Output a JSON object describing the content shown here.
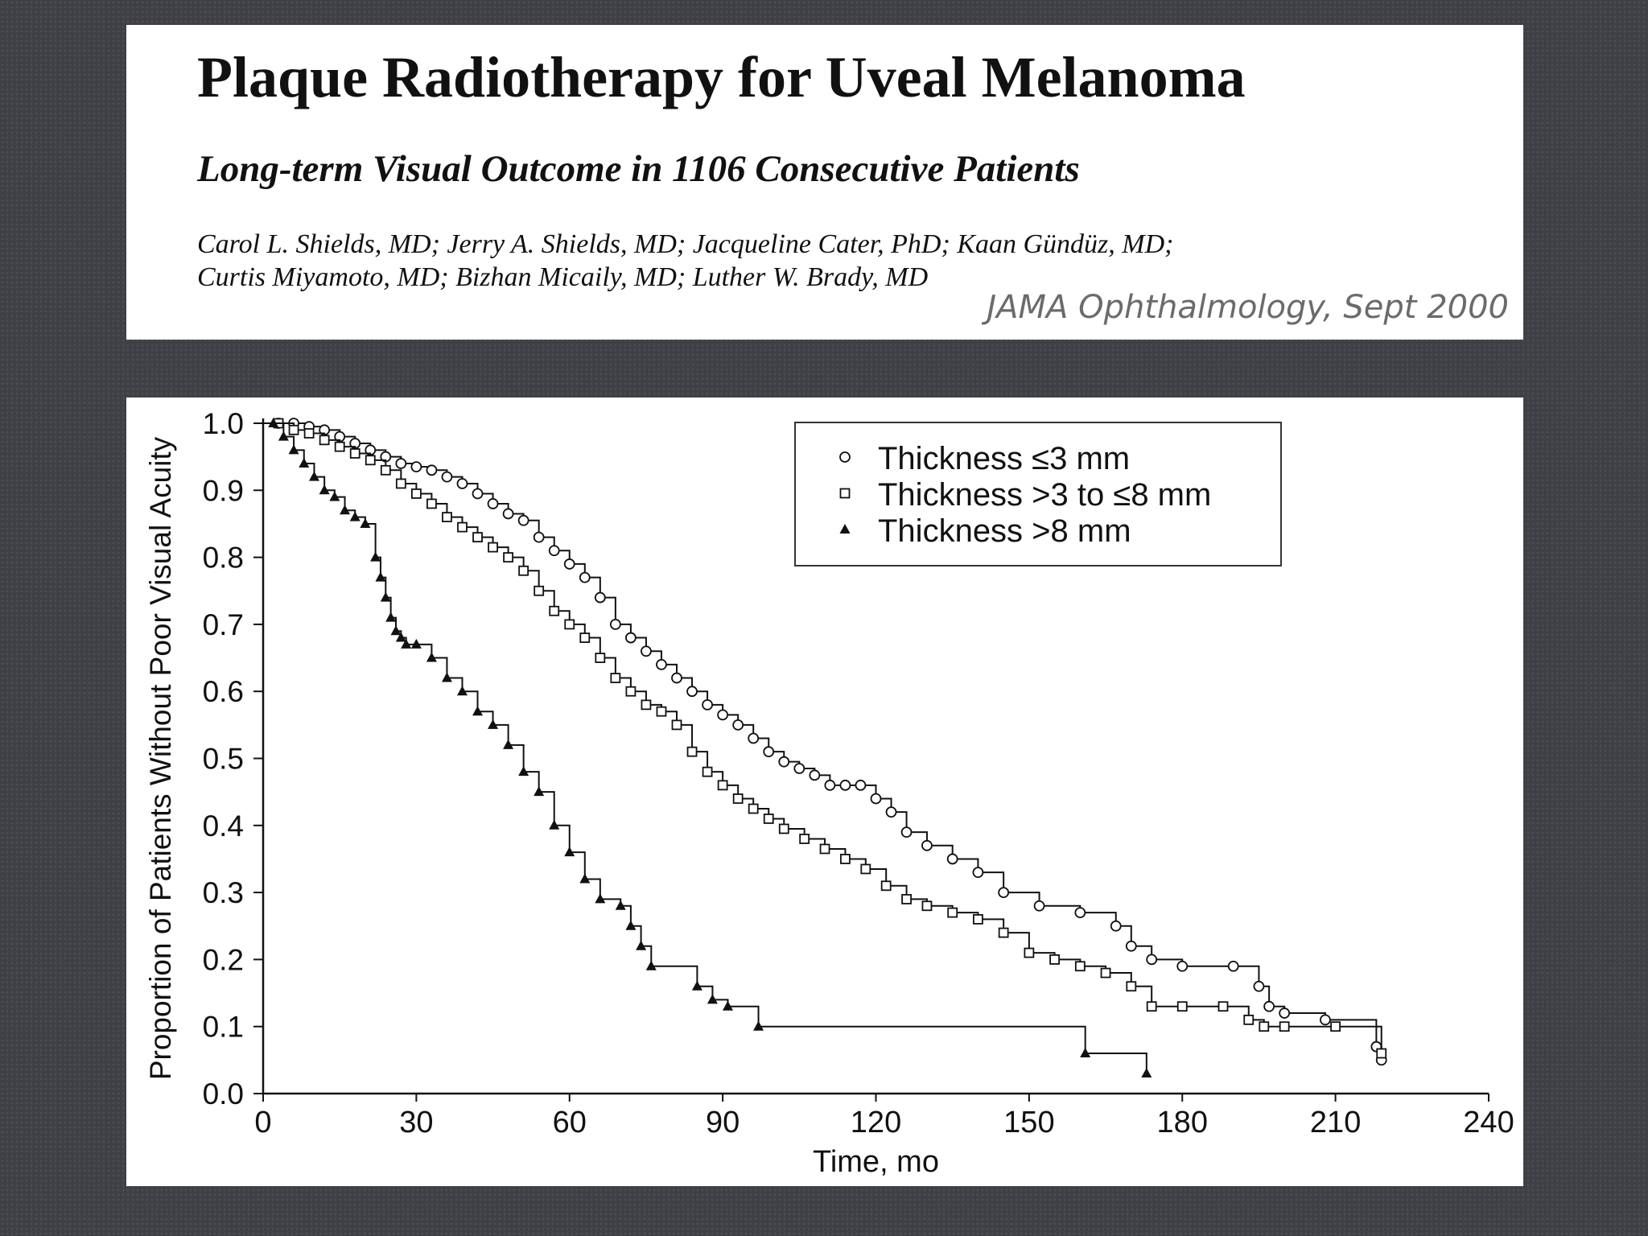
{
  "header": {
    "title": "Plaque Radiotherapy for Uveal Melanoma",
    "subtitle": "Long-term Visual Outcome in 1106 Consecutive Patients",
    "authors_line1": "Carol L. Shields, MD; Jerry A. Shields, MD; Jacqueline Cater, PhD; Kaan Gündüz, MD;",
    "authors_line2": "Curtis Miyamoto, MD; Bizhan Micaily, MD; Luther W. Brady, MD",
    "source": "JAMA Ophthalmology, Sept 2000"
  },
  "chart_data": {
    "type": "line",
    "step": true,
    "xlabel": "Time, mo",
    "ylabel": "Proportion of Patients Without Poor Visual Acuity",
    "xlim": [
      0,
      240
    ],
    "ylim": [
      0,
      1.0
    ],
    "xticks": [
      0,
      30,
      60,
      90,
      120,
      150,
      180,
      210,
      240
    ],
    "yticks": [
      "0.0",
      "0.1",
      "0.2",
      "0.3",
      "0.4",
      "0.5",
      "0.6",
      "0.7",
      "0.8",
      "0.9",
      "1.0"
    ],
    "grid": false,
    "legend_position": "top-right",
    "series": [
      {
        "name": "Thickness ≤3 mm",
        "marker": "circle-open",
        "x": [
          0,
          3,
          6,
          9,
          12,
          15,
          18,
          21,
          24,
          27,
          30,
          33,
          36,
          39,
          42,
          45,
          48,
          51,
          54,
          57,
          60,
          63,
          66,
          69,
          72,
          75,
          78,
          81,
          84,
          87,
          90,
          93,
          96,
          99,
          102,
          105,
          108,
          111,
          114,
          117,
          120,
          123,
          126,
          130,
          135,
          140,
          145,
          152,
          160,
          167,
          170,
          174,
          180,
          190,
          195,
          197,
          200,
          208,
          218,
          219
        ],
        "y": [
          1.0,
          1.0,
          1.0,
          0.995,
          0.99,
          0.98,
          0.97,
          0.96,
          0.95,
          0.94,
          0.935,
          0.93,
          0.92,
          0.91,
          0.895,
          0.88,
          0.865,
          0.855,
          0.83,
          0.81,
          0.79,
          0.77,
          0.74,
          0.7,
          0.68,
          0.66,
          0.64,
          0.62,
          0.6,
          0.58,
          0.565,
          0.55,
          0.53,
          0.51,
          0.495,
          0.485,
          0.475,
          0.46,
          0.46,
          0.46,
          0.44,
          0.42,
          0.39,
          0.37,
          0.35,
          0.33,
          0.3,
          0.28,
          0.27,
          0.25,
          0.22,
          0.2,
          0.19,
          0.19,
          0.16,
          0.13,
          0.12,
          0.11,
          0.07,
          0.05
        ]
      },
      {
        "name": "Thickness >3 to ≤8 mm",
        "marker": "square-open",
        "x": [
          0,
          3,
          6,
          9,
          12,
          15,
          18,
          21,
          24,
          27,
          30,
          33,
          36,
          39,
          42,
          45,
          48,
          51,
          54,
          57,
          60,
          63,
          66,
          69,
          72,
          75,
          78,
          81,
          84,
          87,
          90,
          93,
          96,
          99,
          102,
          106,
          110,
          114,
          118,
          122,
          126,
          130,
          135,
          140,
          145,
          150,
          155,
          160,
          165,
          170,
          174,
          180,
          188,
          193,
          196,
          200,
          210,
          219
        ],
        "y": [
          1.0,
          1.0,
          0.99,
          0.985,
          0.975,
          0.965,
          0.955,
          0.945,
          0.93,
          0.91,
          0.895,
          0.88,
          0.86,
          0.845,
          0.83,
          0.815,
          0.8,
          0.78,
          0.75,
          0.72,
          0.7,
          0.68,
          0.65,
          0.62,
          0.6,
          0.58,
          0.57,
          0.55,
          0.51,
          0.48,
          0.46,
          0.44,
          0.425,
          0.41,
          0.395,
          0.38,
          0.365,
          0.35,
          0.335,
          0.31,
          0.29,
          0.28,
          0.27,
          0.26,
          0.24,
          0.21,
          0.2,
          0.19,
          0.18,
          0.16,
          0.13,
          0.13,
          0.13,
          0.11,
          0.1,
          0.1,
          0.1,
          0.06
        ]
      },
      {
        "name": "Thickness >8 mm",
        "marker": "triangle-filled",
        "x": [
          0,
          2,
          4,
          6,
          8,
          10,
          12,
          14,
          16,
          18,
          20,
          22,
          23,
          24,
          25,
          26,
          27,
          28,
          30,
          33,
          36,
          39,
          42,
          45,
          48,
          51,
          54,
          57,
          60,
          63,
          66,
          70,
          72,
          74,
          76,
          85,
          88,
          91,
          97,
          161,
          173
        ],
        "y": [
          1.0,
          1.0,
          0.98,
          0.96,
          0.94,
          0.92,
          0.9,
          0.89,
          0.87,
          0.86,
          0.85,
          0.8,
          0.77,
          0.74,
          0.71,
          0.69,
          0.68,
          0.67,
          0.67,
          0.65,
          0.62,
          0.6,
          0.57,
          0.55,
          0.52,
          0.48,
          0.45,
          0.4,
          0.36,
          0.32,
          0.29,
          0.28,
          0.25,
          0.22,
          0.19,
          0.16,
          0.14,
          0.13,
          0.1,
          0.06,
          0.03
        ]
      }
    ]
  }
}
